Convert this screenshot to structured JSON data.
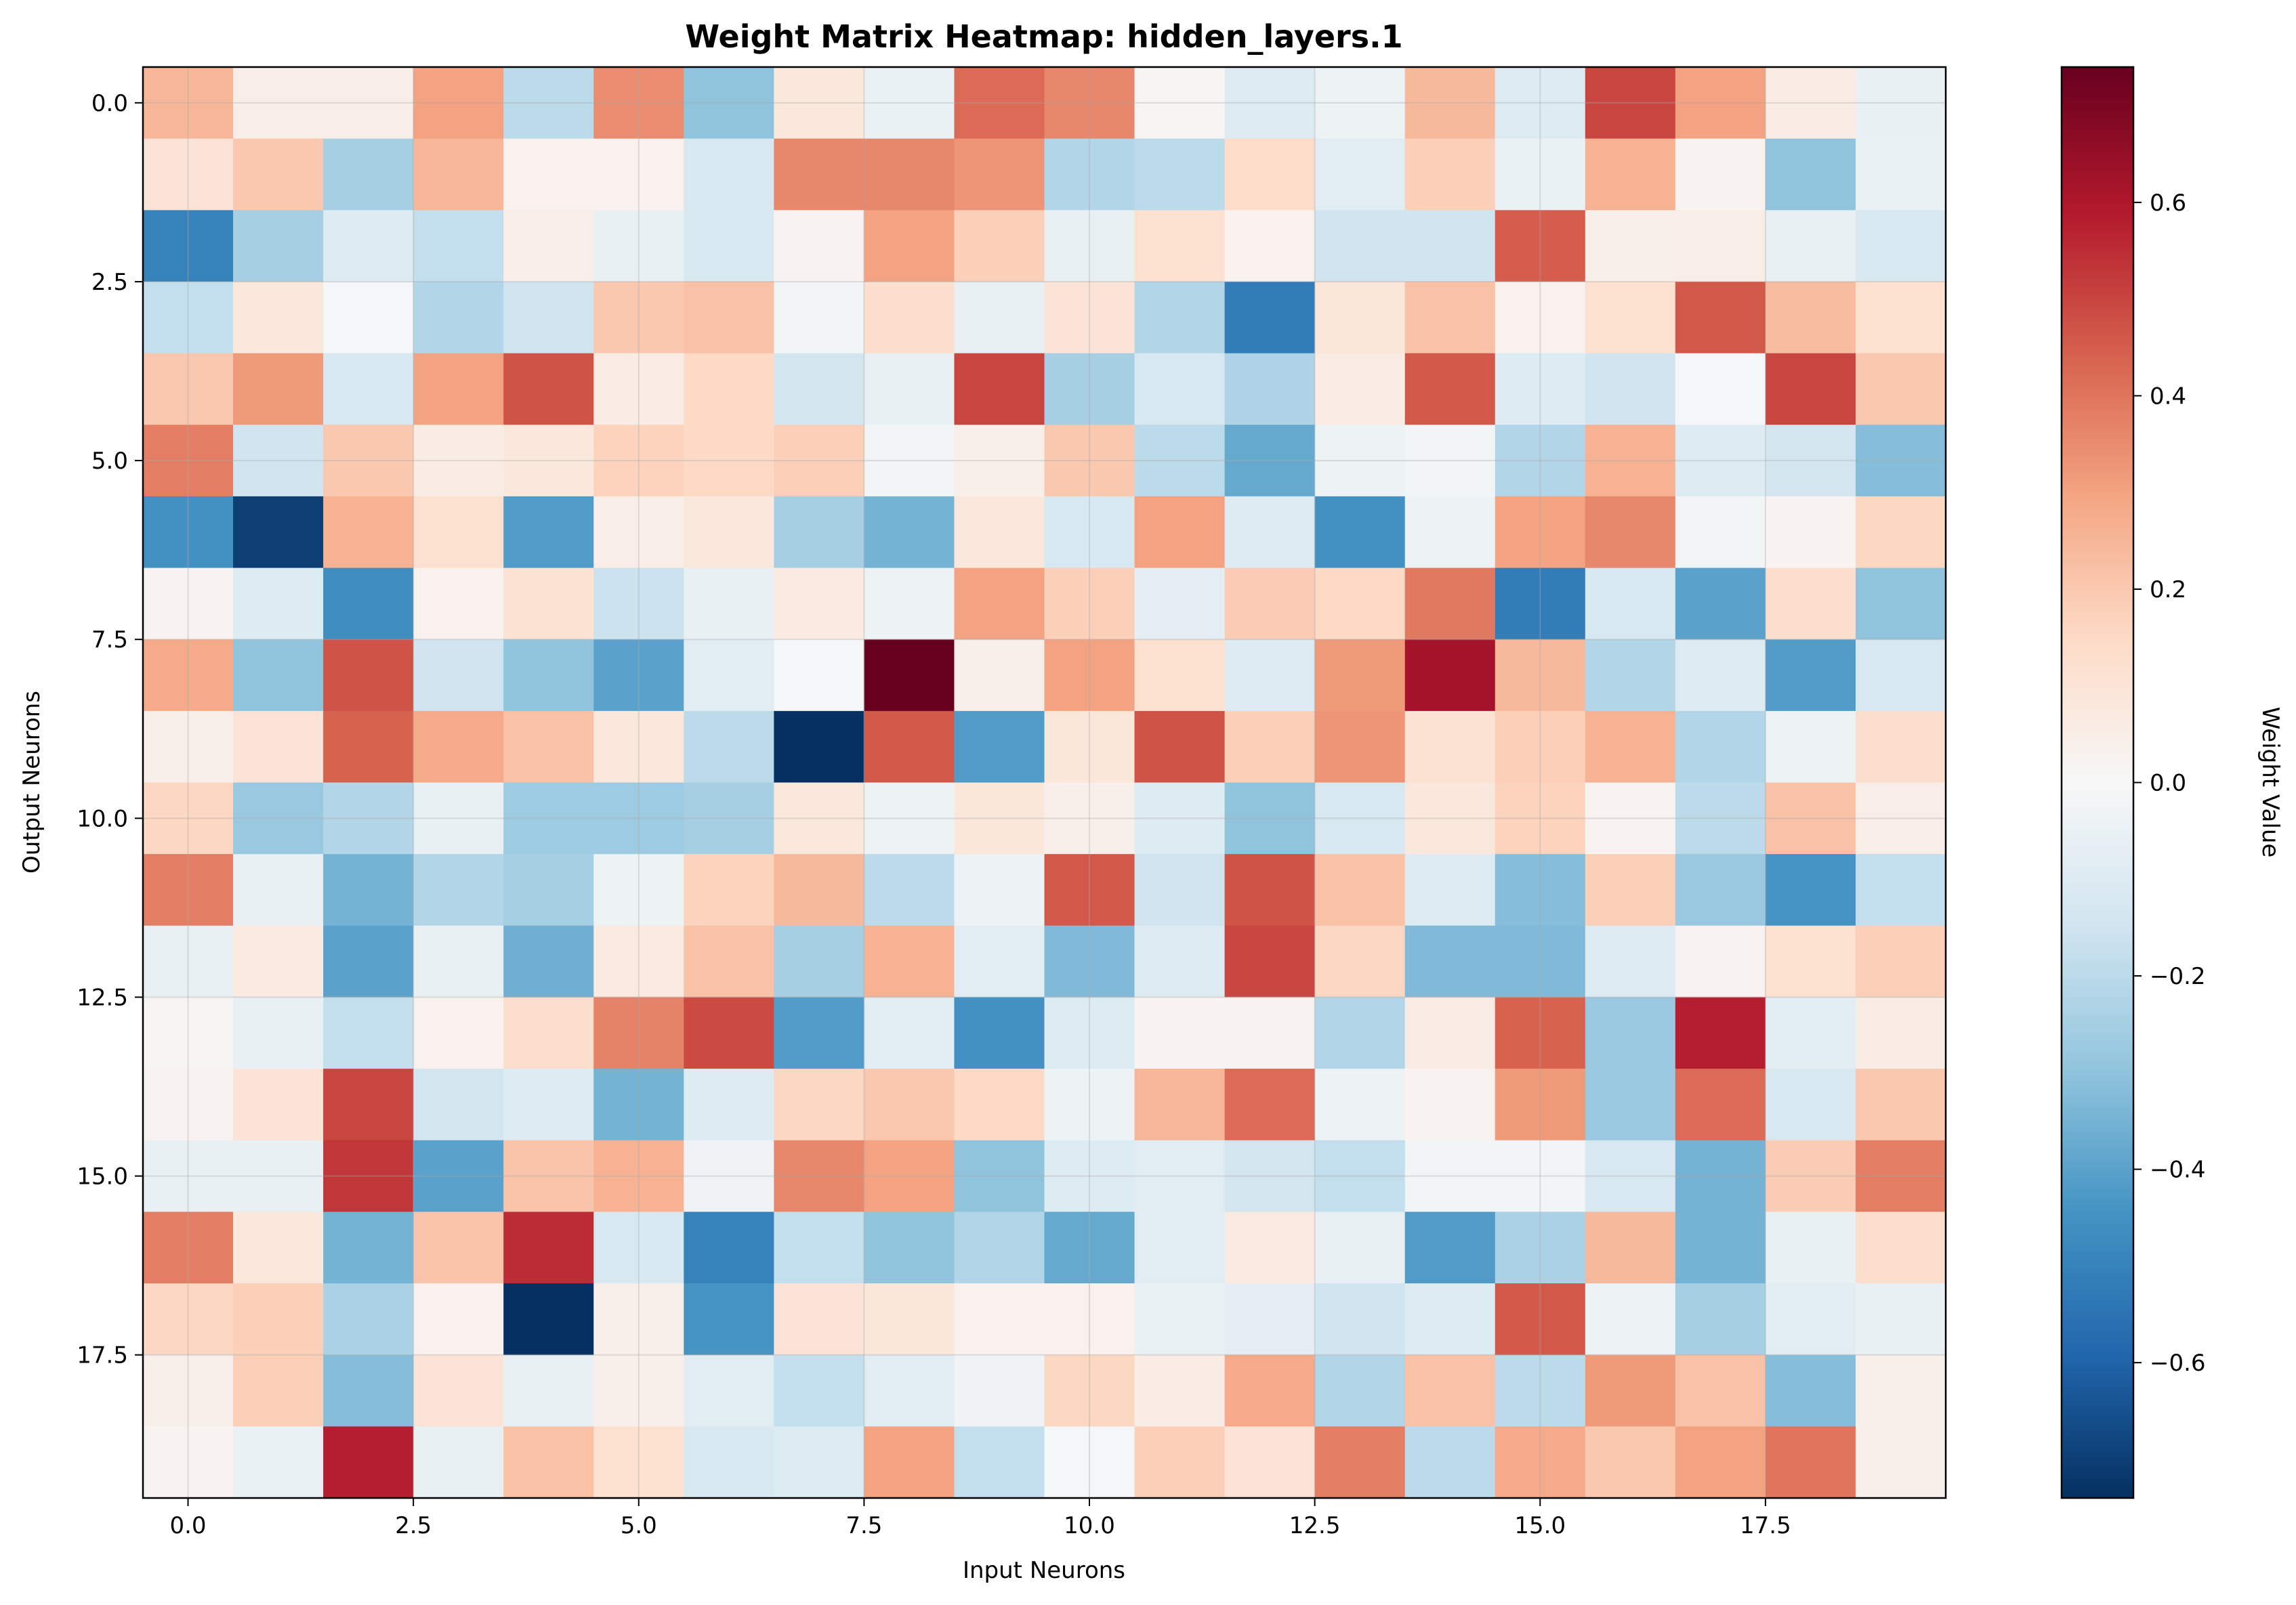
{
  "chart_data": {
    "type": "heatmap",
    "title": "Weight Matrix Heatmap: hidden_layers.1",
    "xlabel": "Input Neurons",
    "ylabel": "Output Neurons",
    "colorbar_label": "Weight Value",
    "colormap": "RdBu_r",
    "vmin": -0.74,
    "vmax": 0.74,
    "grid": true,
    "x_ticks": [
      0.0,
      2.5,
      5.0,
      7.5,
      10.0,
      12.5,
      15.0,
      17.5
    ],
    "x_tick_labels": [
      "0.0",
      "2.5",
      "5.0",
      "7.5",
      "10.0",
      "12.5",
      "15.0",
      "17.5"
    ],
    "y_ticks": [
      0.0,
      2.5,
      5.0,
      7.5,
      10.0,
      12.5,
      15.0,
      17.5
    ],
    "y_tick_labels": [
      "0.0",
      "2.5",
      "5.0",
      "7.5",
      "10.0",
      "12.5",
      "15.0",
      "17.5"
    ],
    "colorbar_ticks": [
      -0.6,
      -0.4,
      -0.2,
      0.0,
      0.2,
      0.4,
      0.6
    ],
    "colorbar_tick_labels": [
      "−0.6",
      "−0.4",
      "−0.2",
      "0.0",
      "0.2",
      "0.4",
      "0.6"
    ],
    "values": [
      [
        0.25,
        0.05,
        0.05,
        0.3,
        -0.2,
        0.35,
        -0.3,
        0.08,
        -0.05,
        0.42,
        0.36,
        0.01,
        -0.1,
        -0.04,
        0.24,
        -0.1,
        0.5,
        0.3,
        0.06,
        -0.06
      ],
      [
        0.1,
        0.2,
        -0.25,
        0.25,
        0.03,
        0.03,
        -0.12,
        0.36,
        0.36,
        0.33,
        -0.22,
        -0.2,
        0.14,
        -0.08,
        0.18,
        -0.05,
        0.26,
        0.02,
        -0.3,
        -0.05
      ],
      [
        -0.5,
        -0.25,
        -0.1,
        -0.18,
        0.05,
        -0.06,
        -0.12,
        0.02,
        0.3,
        0.18,
        -0.06,
        0.12,
        0.03,
        -0.15,
        -0.15,
        0.45,
        0.04,
        0.05,
        -0.06,
        -0.12
      ],
      [
        -0.18,
        0.08,
        -0.01,
        -0.22,
        -0.15,
        0.2,
        0.22,
        -0.02,
        0.13,
        -0.06,
        0.1,
        -0.22,
        -0.52,
        0.09,
        0.22,
        0.03,
        0.12,
        0.46,
        0.23,
        0.12
      ],
      [
        0.2,
        0.32,
        -0.12,
        0.3,
        0.47,
        0.06,
        0.15,
        -0.14,
        -0.06,
        0.5,
        -0.25,
        -0.12,
        -0.23,
        0.06,
        0.46,
        -0.1,
        -0.15,
        -0.01,
        0.5,
        0.2
      ],
      [
        0.38,
        -0.15,
        0.2,
        0.06,
        0.08,
        0.17,
        0.15,
        0.18,
        -0.02,
        0.04,
        0.2,
        -0.2,
        -0.38,
        -0.04,
        -0.02,
        -0.22,
        0.26,
        -0.1,
        -0.14,
        -0.32
      ],
      [
        -0.45,
        -0.7,
        0.26,
        0.12,
        -0.42,
        0.05,
        0.08,
        -0.25,
        -0.35,
        0.08,
        -0.12,
        0.3,
        -0.1,
        -0.45,
        -0.04,
        0.3,
        0.36,
        -0.02,
        0.02,
        0.16
      ],
      [
        0.02,
        -0.1,
        -0.46,
        0.03,
        0.11,
        -0.16,
        -0.06,
        0.07,
        -0.04,
        0.3,
        0.18,
        -0.07,
        0.19,
        0.15,
        0.39,
        -0.52,
        -0.12,
        -0.4,
        0.13,
        -0.3
      ],
      [
        0.28,
        -0.3,
        0.47,
        -0.15,
        -0.3,
        -0.4,
        -0.08,
        -0.01,
        0.74,
        0.04,
        0.3,
        0.12,
        -0.1,
        0.32,
        0.62,
        0.24,
        -0.22,
        -0.1,
        -0.42,
        -0.12
      ],
      [
        0.04,
        0.1,
        0.44,
        0.28,
        0.22,
        0.08,
        -0.2,
        -0.74,
        0.46,
        -0.42,
        0.09,
        0.47,
        0.18,
        0.33,
        0.11,
        0.18,
        0.26,
        -0.22,
        -0.04,
        0.13
      ],
      [
        0.16,
        -0.28,
        -0.22,
        -0.06,
        -0.27,
        -0.27,
        -0.25,
        0.08,
        -0.04,
        0.09,
        0.04,
        -0.1,
        -0.3,
        -0.12,
        0.08,
        0.17,
        0.02,
        -0.2,
        0.22,
        0.05
      ],
      [
        0.38,
        -0.06,
        -0.35,
        -0.22,
        -0.25,
        -0.04,
        0.17,
        0.24,
        -0.2,
        -0.04,
        0.46,
        -0.15,
        0.47,
        0.22,
        -0.1,
        -0.32,
        0.18,
        -0.28,
        -0.44,
        -0.18
      ],
      [
        -0.06,
        0.07,
        -0.4,
        -0.06,
        -0.36,
        0.07,
        0.22,
        -0.25,
        0.26,
        -0.08,
        -0.33,
        -0.1,
        0.5,
        0.16,
        -0.33,
        -0.33,
        -0.1,
        0.02,
        0.12,
        0.18
      ],
      [
        0.01,
        -0.06,
        -0.18,
        0.03,
        0.13,
        0.37,
        0.49,
        -0.42,
        -0.08,
        -0.45,
        -0.1,
        0.02,
        0.02,
        -0.22,
        0.06,
        0.44,
        -0.28,
        0.58,
        -0.08,
        0.06
      ],
      [
        0.02,
        0.1,
        0.5,
        -0.14,
        -0.1,
        -0.35,
        -0.1,
        0.16,
        0.2,
        0.15,
        -0.04,
        0.25,
        0.42,
        -0.04,
        0.02,
        0.32,
        -0.28,
        0.42,
        -0.12,
        0.2
      ],
      [
        -0.06,
        -0.06,
        0.53,
        -0.4,
        0.21,
        0.26,
        -0.03,
        0.36,
        0.3,
        -0.3,
        -0.1,
        -0.08,
        -0.14,
        -0.18,
        -0.02,
        -0.02,
        -0.12,
        -0.35,
        0.19,
        0.38
      ],
      [
        0.38,
        0.08,
        -0.35,
        0.21,
        0.55,
        -0.12,
        -0.5,
        -0.18,
        -0.3,
        -0.22,
        -0.38,
        -0.08,
        0.07,
        -0.06,
        -0.42,
        -0.24,
        0.24,
        -0.35,
        -0.06,
        0.13
      ],
      [
        0.16,
        0.18,
        -0.24,
        0.03,
        -0.74,
        0.04,
        -0.44,
        0.1,
        0.09,
        0.03,
        0.03,
        -0.05,
        -0.07,
        -0.15,
        -0.1,
        0.46,
        -0.04,
        -0.25,
        -0.08,
        -0.06
      ],
      [
        0.04,
        0.18,
        -0.32,
        0.1,
        -0.06,
        0.04,
        -0.08,
        -0.18,
        -0.08,
        -0.03,
        0.16,
        0.06,
        0.28,
        -0.22,
        0.22,
        -0.2,
        0.32,
        0.22,
        -0.32,
        0.04
      ],
      [
        0.02,
        -0.05,
        0.58,
        -0.06,
        0.22,
        0.12,
        -0.12,
        -0.1,
        0.3,
        -0.18,
        -0.01,
        0.18,
        0.1,
        0.38,
        -0.2,
        0.28,
        0.2,
        0.3,
        0.4,
        0.04
      ]
    ]
  }
}
